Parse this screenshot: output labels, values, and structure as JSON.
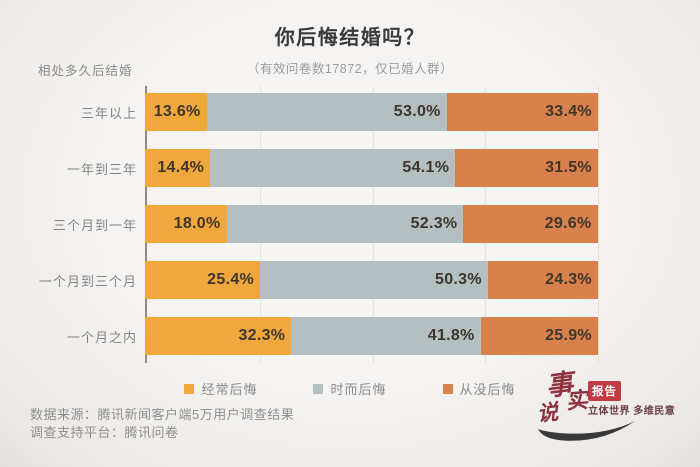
{
  "header": {
    "title": "你后悔结婚吗？",
    "subtitle": "（有效问卷数17872，仅已婚人群）"
  },
  "chart_data": {
    "type": "bar",
    "variant": "horizontal-stacked",
    "title": "你后悔结婚吗？",
    "subtitle": "（有效问卷数17872，仅已婚人群）",
    "axis_label": "相处多久后结婚",
    "categories": [
      "三年以上",
      "一年到三年",
      "三个月到一年",
      "一个月到三个月",
      "一个月之内"
    ],
    "series": [
      {
        "name": "经常后悔",
        "color": "#f0a83c",
        "values": [
          13.6,
          14.4,
          18.0,
          25.4,
          32.3
        ],
        "labels": [
          "13.6%",
          "14.4%",
          "18.0%",
          "25.4%",
          "32.3%"
        ]
      },
      {
        "name": "时而后悔",
        "color": "#b4bfc2",
        "values": [
          53.0,
          54.1,
          52.3,
          50.3,
          41.8
        ],
        "labels": [
          "53.0%",
          "54.1%",
          "52.3%",
          "50.3%",
          "41.8%"
        ]
      },
      {
        "name": "从没后悔",
        "color": "#d8814c",
        "values": [
          33.4,
          31.5,
          29.6,
          24.3,
          25.9
        ],
        "labels": [
          "33.4%",
          "31.5%",
          "29.6%",
          "24.3%",
          "25.9%"
        ]
      }
    ],
    "xlim": [
      0,
      100
    ],
    "grid": "vertical lines every 25%",
    "legend_position": "bottom"
  },
  "footer": {
    "source_line": "数据来源：腾讯新闻客户端5万用户调查结果",
    "platform_line": "调查支持平台：腾讯问卷"
  },
  "logo": {
    "chars": [
      "事",
      "实",
      "说"
    ],
    "badge": "报告",
    "tagline": "立体世界 多维民意"
  }
}
